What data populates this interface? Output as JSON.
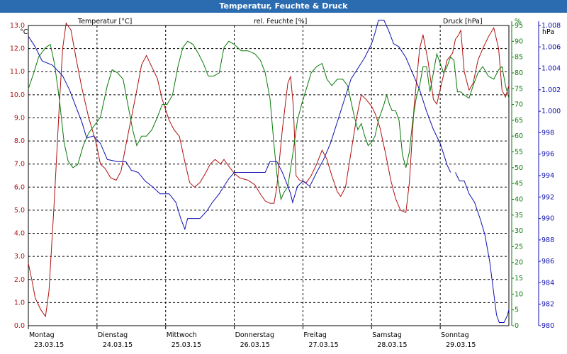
{
  "window": {
    "title": "Temperatur, Feuchte & Druck"
  },
  "colors": {
    "temperature": "#b01010",
    "humidity": "#0a7a0a",
    "pressure": "#1010b0",
    "title_bar": "#2b6cb0",
    "grid": "#000000"
  },
  "chart_data": {
    "type": "line",
    "title": "Temperatur, Feuchte & Druck",
    "x_categories": [
      {
        "day": "Montag",
        "date": "23.03.15"
      },
      {
        "day": "Dienstag",
        "date": "24.03.15"
      },
      {
        "day": "Mittwoch",
        "date": "25.03.15"
      },
      {
        "day": "Donnerstag",
        "date": "26.03.15"
      },
      {
        "day": "Freitag",
        "date": "27.03.15"
      },
      {
        "day": "Samstag",
        "date": "28.03.15"
      },
      {
        "day": "Sonntag",
        "date": "29.03.15"
      }
    ],
    "x_range_days": [
      0,
      7
    ],
    "axes": {
      "temperature": {
        "unit_label": "°C",
        "min": 0.0,
        "max": 13.0,
        "step": 1.0,
        "ticks": [
          "0.0",
          "1.0",
          "2.0",
          "3.0",
          "4.0",
          "5.0",
          "6.0",
          "7.0",
          "8.0",
          "9.0",
          "10.0",
          "11.0",
          "12.0",
          "13.0"
        ]
      },
      "humidity": {
        "unit_label": "%",
        "min": 0,
        "max": 95,
        "step": 5,
        "ticks": [
          "0",
          "5",
          "10",
          "15",
          "20",
          "25",
          "30",
          "35",
          "40",
          "45",
          "50",
          "55",
          "60",
          "65",
          "70",
          "75",
          "80",
          "85",
          "90",
          "95"
        ]
      },
      "pressure": {
        "unit_label": "hPa",
        "min": 980,
        "max": 1008,
        "step": 2,
        "ticks": [
          "980",
          "982",
          "984",
          "986",
          "988",
          "990",
          "992",
          "994",
          "996",
          "998",
          "1.000",
          "1.002",
          "1.004",
          "1.006",
          "1.008"
        ]
      }
    },
    "series": [
      {
        "name": "Temperatur [°C]",
        "axis": "temperature",
        "points": [
          [
            0,
            2.7
          ],
          [
            0.05,
            2.0
          ],
          [
            0.1,
            1.2
          ],
          [
            0.18,
            0.7
          ],
          [
            0.25,
            0.4
          ],
          [
            0.3,
            1.5
          ],
          [
            0.38,
            5.5
          ],
          [
            0.45,
            9.5
          ],
          [
            0.5,
            12.0
          ],
          [
            0.55,
            13.1
          ],
          [
            0.62,
            12.8
          ],
          [
            0.7,
            11.5
          ],
          [
            0.78,
            10.3
          ],
          [
            0.88,
            9.0
          ],
          [
            0.98,
            8.0
          ],
          [
            1.05,
            7.0
          ],
          [
            1.12,
            6.8
          ],
          [
            1.2,
            6.4
          ],
          [
            1.28,
            6.3
          ],
          [
            1.35,
            6.7
          ],
          [
            1.42,
            7.8
          ],
          [
            1.5,
            9.0
          ],
          [
            1.58,
            10.2
          ],
          [
            1.65,
            11.3
          ],
          [
            1.72,
            11.7
          ],
          [
            1.8,
            11.2
          ],
          [
            1.88,
            10.7
          ],
          [
            1.95,
            9.8
          ],
          [
            2.05,
            8.9
          ],
          [
            2.12,
            8.5
          ],
          [
            2.2,
            8.2
          ],
          [
            2.28,
            7.1
          ],
          [
            2.35,
            6.2
          ],
          [
            2.42,
            6.0
          ],
          [
            2.5,
            6.2
          ],
          [
            2.58,
            6.6
          ],
          [
            2.65,
            7.0
          ],
          [
            2.72,
            7.2
          ],
          [
            2.8,
            7.0
          ],
          [
            2.85,
            7.2
          ],
          [
            2.92,
            6.9
          ],
          [
            3.0,
            6.6
          ],
          [
            3.08,
            6.4
          ],
          [
            3.2,
            6.3
          ],
          [
            3.3,
            6.1
          ],
          [
            3.38,
            5.7
          ],
          [
            3.45,
            5.4
          ],
          [
            3.52,
            5.3
          ],
          [
            3.58,
            5.3
          ],
          [
            3.62,
            6.0
          ],
          [
            3.7,
            8.5
          ],
          [
            3.78,
            10.5
          ],
          [
            3.82,
            10.8
          ],
          [
            3.86,
            9.5
          ],
          [
            3.9,
            6.5
          ],
          [
            3.95,
            6.3
          ],
          [
            4.05,
            6.2
          ],
          [
            4.12,
            6.5
          ],
          [
            4.2,
            7.0
          ],
          [
            4.28,
            7.6
          ],
          [
            4.35,
            7.2
          ],
          [
            4.42,
            6.5
          ],
          [
            4.5,
            5.8
          ],
          [
            4.55,
            5.6
          ],
          [
            4.62,
            6.0
          ],
          [
            4.7,
            7.5
          ],
          [
            4.78,
            9.0
          ],
          [
            4.85,
            10.0
          ],
          [
            4.92,
            9.8
          ],
          [
            5.0,
            9.5
          ],
          [
            5.05,
            9.2
          ],
          [
            5.12,
            8.6
          ],
          [
            5.2,
            7.5
          ],
          [
            5.28,
            6.3
          ],
          [
            5.35,
            5.5
          ],
          [
            5.42,
            5.0
          ],
          [
            5.5,
            4.9
          ],
          [
            5.55,
            6.2
          ],
          [
            5.62,
            9.5
          ],
          [
            5.7,
            12.0
          ],
          [
            5.75,
            12.6
          ],
          [
            5.82,
            11.5
          ],
          [
            5.9,
            9.8
          ],
          [
            5.95,
            9.6
          ],
          [
            6.02,
            10.5
          ],
          [
            6.1,
            11.5
          ],
          [
            6.18,
            11.8
          ],
          [
            6.22,
            12.4
          ],
          [
            6.27,
            12.6
          ],
          [
            6.3,
            12.8
          ],
          [
            6.35,
            11.0
          ],
          [
            6.42,
            10.2
          ],
          [
            6.48,
            10.5
          ],
          [
            6.55,
            11.5
          ],
          [
            6.62,
            12.0
          ],
          [
            6.7,
            12.5
          ],
          [
            6.78,
            12.9
          ],
          [
            6.85,
            12.0
          ],
          [
            6.9,
            10.2
          ],
          [
            6.95,
            9.9
          ],
          [
            7.0,
            10.4
          ]
        ]
      },
      {
        "name": "rel. Feuchte [%]",
        "axis": "humidity",
        "points": [
          [
            0,
            75
          ],
          [
            0.08,
            80
          ],
          [
            0.15,
            85
          ],
          [
            0.25,
            88
          ],
          [
            0.32,
            89
          ],
          [
            0.38,
            83
          ],
          [
            0.45,
            72
          ],
          [
            0.52,
            58
          ],
          [
            0.58,
            52
          ],
          [
            0.65,
            50
          ],
          [
            0.72,
            51
          ],
          [
            0.8,
            57
          ],
          [
            0.88,
            61
          ],
          [
            0.95,
            63
          ],
          [
            1.05,
            66
          ],
          [
            1.15,
            76
          ],
          [
            1.22,
            81
          ],
          [
            1.3,
            80
          ],
          [
            1.38,
            78
          ],
          [
            1.45,
            70
          ],
          [
            1.52,
            62
          ],
          [
            1.58,
            57
          ],
          [
            1.65,
            60
          ],
          [
            1.72,
            60
          ],
          [
            1.8,
            62
          ],
          [
            1.88,
            66
          ],
          [
            1.95,
            70
          ],
          [
            2.02,
            70
          ],
          [
            2.1,
            73
          ],
          [
            2.18,
            82
          ],
          [
            2.25,
            88
          ],
          [
            2.32,
            90
          ],
          [
            2.4,
            89
          ],
          [
            2.48,
            86
          ],
          [
            2.55,
            83
          ],
          [
            2.62,
            79
          ],
          [
            2.7,
            79
          ],
          [
            2.78,
            80
          ],
          [
            2.85,
            88
          ],
          [
            2.92,
            90
          ],
          [
            3.0,
            89
          ],
          [
            3.1,
            87
          ],
          [
            3.2,
            87
          ],
          [
            3.3,
            86
          ],
          [
            3.38,
            84
          ],
          [
            3.45,
            80
          ],
          [
            3.52,
            72
          ],
          [
            3.58,
            57
          ],
          [
            3.62,
            48
          ],
          [
            3.68,
            40
          ],
          [
            3.72,
            42
          ],
          [
            3.78,
            44
          ],
          [
            3.85,
            54
          ],
          [
            3.92,
            65
          ],
          [
            3.98,
            70
          ],
          [
            4.05,
            75
          ],
          [
            4.12,
            80
          ],
          [
            4.2,
            82
          ],
          [
            4.28,
            83
          ],
          [
            4.35,
            78
          ],
          [
            4.42,
            76
          ],
          [
            4.5,
            78
          ],
          [
            4.58,
            78
          ],
          [
            4.65,
            76
          ],
          [
            4.7,
            71
          ],
          [
            4.75,
            66
          ],
          [
            4.8,
            62
          ],
          [
            4.85,
            64
          ],
          [
            4.9,
            60
          ],
          [
            4.95,
            57
          ],
          [
            5.0,
            58
          ],
          [
            5.05,
            60
          ],
          [
            5.1,
            65
          ],
          [
            5.18,
            70
          ],
          [
            5.22,
            73
          ],
          [
            5.26,
            70
          ],
          [
            5.3,
            68
          ],
          [
            5.35,
            68
          ],
          [
            5.4,
            65
          ],
          [
            5.45,
            54
          ],
          [
            5.5,
            50
          ],
          [
            5.55,
            55
          ],
          [
            5.6,
            65
          ],
          [
            5.65,
            72
          ],
          [
            5.7,
            76
          ],
          [
            5.75,
            82
          ],
          [
            5.8,
            82
          ],
          [
            5.85,
            74
          ],
          [
            5.9,
            80
          ],
          [
            5.95,
            86
          ],
          [
            6.0,
            83
          ],
          [
            6.05,
            80
          ],
          [
            6.1,
            82
          ],
          [
            6.15,
            85
          ],
          [
            6.2,
            84
          ],
          [
            6.25,
            74
          ],
          [
            6.3,
            74
          ],
          [
            6.35,
            73
          ],
          [
            6.42,
            72
          ],
          [
            6.48,
            76
          ],
          [
            6.55,
            80
          ],
          [
            6.62,
            82
          ],
          [
            6.7,
            79
          ],
          [
            6.78,
            78
          ],
          [
            6.85,
            81
          ],
          [
            6.9,
            82
          ],
          [
            6.95,
            76
          ],
          [
            7.0,
            72
          ]
        ]
      },
      {
        "name": "Druck [hPa]",
        "axis": "pressure",
        "points": [
          [
            0,
            1007.0
          ],
          [
            0.1,
            1006.0
          ],
          [
            0.2,
            1004.7
          ],
          [
            0.35,
            1004.3
          ],
          [
            0.5,
            1003.3
          ],
          [
            0.6,
            1002.0
          ],
          [
            0.7,
            1000.3
          ],
          [
            0.78,
            999.0
          ],
          [
            0.85,
            997.5
          ],
          [
            0.95,
            997.7
          ],
          [
            1.05,
            997.0
          ],
          [
            1.15,
            995.5
          ],
          [
            1.3,
            995.3
          ],
          [
            1.42,
            995.3
          ],
          [
            1.5,
            994.5
          ],
          [
            1.6,
            994.3
          ],
          [
            1.7,
            993.5
          ],
          [
            1.8,
            993.0
          ],
          [
            1.92,
            992.3
          ],
          [
            2.05,
            992.3
          ],
          [
            2.15,
            991.5
          ],
          [
            2.22,
            990.0
          ],
          [
            2.28,
            989.0
          ],
          [
            2.32,
            990.0
          ],
          [
            2.4,
            990.0
          ],
          [
            2.5,
            990.0
          ],
          [
            2.6,
            990.7
          ],
          [
            2.68,
            991.5
          ],
          [
            2.78,
            992.3
          ],
          [
            2.85,
            993.0
          ],
          [
            2.92,
            993.7
          ],
          [
            3.0,
            994.3
          ],
          [
            3.15,
            994.3
          ],
          [
            3.3,
            994.3
          ],
          [
            3.45,
            994.3
          ],
          [
            3.52,
            995.3
          ],
          [
            3.62,
            995.3
          ],
          [
            3.7,
            994.3
          ],
          [
            3.78,
            993.0
          ],
          [
            3.82,
            992.3
          ],
          [
            3.85,
            991.5
          ],
          [
            3.92,
            993.0
          ],
          [
            4.0,
            993.5
          ],
          [
            4.1,
            993.0
          ],
          [
            4.2,
            994.3
          ],
          [
            4.3,
            995.5
          ],
          [
            4.4,
            997.0
          ],
          [
            4.5,
            999.0
          ],
          [
            4.6,
            1001.0
          ],
          [
            4.7,
            1003.0
          ],
          [
            4.8,
            1004.0
          ],
          [
            4.9,
            1005.0
          ],
          [
            5.0,
            1006.3
          ],
          [
            5.05,
            1007.3
          ],
          [
            5.1,
            1008.5
          ],
          [
            5.18,
            1008.5
          ],
          [
            5.25,
            1007.5
          ],
          [
            5.32,
            1006.3
          ],
          [
            5.4,
            1006.0
          ],
          [
            5.5,
            1005.0
          ],
          [
            5.6,
            1003.5
          ],
          [
            5.7,
            1002.0
          ],
          [
            5.8,
            1000.0
          ],
          [
            5.9,
            998.3
          ],
          [
            6.0,
            997.0
          ],
          [
            6.05,
            996.0
          ],
          [
            6.1,
            995.0
          ],
          [
            6.15,
            994.3
          ],
          [
            null,
            null
          ],
          [
            6.22,
            994.3
          ],
          [
            6.28,
            993.5
          ],
          [
            6.35,
            993.5
          ],
          [
            6.42,
            992.3
          ],
          [
            6.5,
            991.5
          ],
          [
            6.58,
            990.0
          ],
          [
            6.65,
            988.5
          ],
          [
            6.72,
            986.0
          ],
          [
            6.78,
            983.0
          ],
          [
            6.82,
            981.0
          ],
          [
            6.86,
            980.3
          ],
          [
            6.93,
            980.3
          ],
          [
            6.98,
            981.0
          ],
          [
            7.0,
            981.5
          ]
        ]
      }
    ]
  }
}
